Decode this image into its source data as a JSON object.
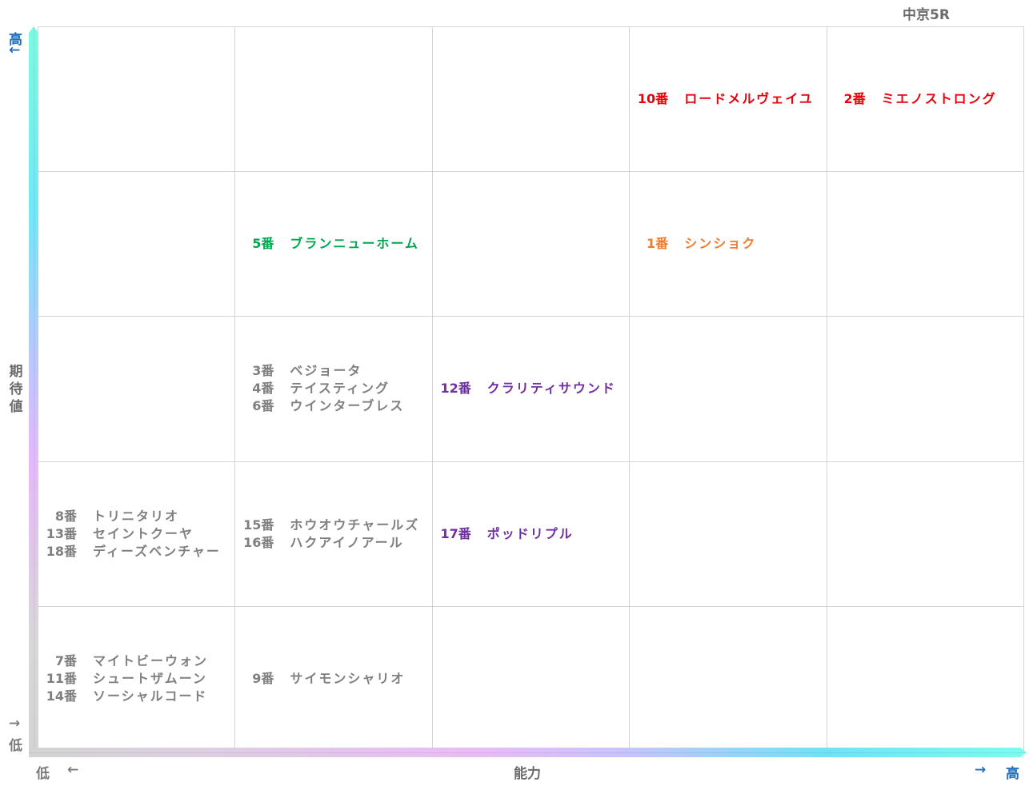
{
  "title": "中京5R",
  "axes": {
    "y_label": [
      "期",
      "待",
      "値"
    ],
    "y_high": "高",
    "y_high_arrow": "←",
    "y_low_arrow": "→",
    "y_low": "低",
    "x_label": "能力",
    "x_low": "低",
    "x_low_arrow": "←",
    "x_high_arrow": "→",
    "x_high": "高"
  },
  "colors": {
    "red": "#e8000b",
    "orange": "#ed7d31",
    "green": "#00a550",
    "purple": "#7030a0",
    "gray": "#7f7f7f",
    "axis_label_blue": "#1f6ebd"
  },
  "chart_data": {
    "type": "table",
    "title": "中京5R",
    "xlabel": "能力",
    "ylabel": "期待値",
    "x_categories": [
      "1",
      "2",
      "3",
      "4",
      "5"
    ],
    "y_categories": [
      "5",
      "4",
      "3",
      "2",
      "1"
    ],
    "x_range_labels": [
      "低",
      "高"
    ],
    "y_range_labels": [
      "低",
      "高"
    ],
    "grid": true,
    "cells": [
      {
        "row": 1,
        "col": 4,
        "color": "red",
        "entries": [
          {
            "num": "10番",
            "name": "ロードメルヴェイユ"
          }
        ]
      },
      {
        "row": 1,
        "col": 5,
        "color": "red",
        "entries": [
          {
            "num": "2番",
            "name": "ミエノストロング"
          }
        ]
      },
      {
        "row": 2,
        "col": 2,
        "color": "green",
        "entries": [
          {
            "num": "5番",
            "name": "ブランニューホーム"
          }
        ]
      },
      {
        "row": 2,
        "col": 4,
        "color": "orange",
        "entries": [
          {
            "num": "1番",
            "name": "シンショク"
          }
        ]
      },
      {
        "row": 3,
        "col": 2,
        "color": "gray",
        "entries": [
          {
            "num": "3番",
            "name": "ベジョータ"
          },
          {
            "num": "4番",
            "name": "テイスティング"
          },
          {
            "num": "6番",
            "name": "ウインターブレス"
          }
        ]
      },
      {
        "row": 3,
        "col": 3,
        "color": "purple",
        "entries": [
          {
            "num": "12番",
            "name": "クラリティサウンド"
          }
        ]
      },
      {
        "row": 4,
        "col": 1,
        "color": "gray",
        "entries": [
          {
            "num": "8番",
            "name": "トリニタリオ"
          },
          {
            "num": "13番",
            "name": "セイントクーヤ"
          },
          {
            "num": "18番",
            "name": "ディーズベンチャー"
          }
        ]
      },
      {
        "row": 4,
        "col": 2,
        "color": "gray",
        "entries": [
          {
            "num": "15番",
            "name": "ホウオウチャールズ"
          },
          {
            "num": "16番",
            "name": "ハクアイノアール"
          }
        ]
      },
      {
        "row": 4,
        "col": 3,
        "color": "purple",
        "entries": [
          {
            "num": "17番",
            "name": "ポッドリプル"
          }
        ]
      },
      {
        "row": 5,
        "col": 1,
        "color": "gray",
        "entries": [
          {
            "num": "7番",
            "name": "マイトビーウォン"
          },
          {
            "num": "11番",
            "name": "シュートザムーン"
          },
          {
            "num": "14番",
            "name": "ソーシャルコード"
          }
        ]
      },
      {
        "row": 5,
        "col": 2,
        "color": "gray",
        "entries": [
          {
            "num": "9番",
            "name": "サイモンシャリオ"
          }
        ]
      }
    ]
  }
}
